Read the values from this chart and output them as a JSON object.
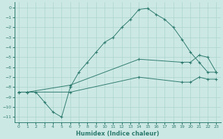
{
  "xlabel": "Humidex (Indice chaleur)",
  "ylabel": "",
  "background_color": "#cce8e4",
  "grid_color": "#aad4cc",
  "line_color": "#2d7a6e",
  "xlim": [
    -0.5,
    23.5
  ],
  "ylim": [
    -11.5,
    0.5
  ],
  "xticks": [
    0,
    1,
    2,
    3,
    4,
    5,
    6,
    7,
    8,
    9,
    10,
    11,
    12,
    13,
    14,
    15,
    16,
    17,
    18,
    19,
    20,
    21,
    22,
    23
  ],
  "yticks": [
    0,
    -1,
    -2,
    -3,
    -4,
    -5,
    -6,
    -7,
    -8,
    -9,
    -10,
    -11
  ],
  "curve1_x": [
    0,
    1,
    2,
    3,
    4,
    5,
    6,
    7,
    8,
    9,
    10,
    11,
    12,
    13,
    14,
    15,
    16,
    17,
    18,
    19,
    20,
    21,
    22,
    23
  ],
  "curve1_y": [
    -8.5,
    -8.5,
    -8.5,
    -9.5,
    -10.5,
    -11.0,
    -8.0,
    -6.5,
    -5.5,
    -4.5,
    -3.5,
    -3.0,
    -2.0,
    -1.2,
    -0.2,
    -0.1,
    -0.7,
    -1.2,
    -2.0,
    -3.2,
    -4.5,
    -5.5,
    -6.5,
    -6.5
  ],
  "curve2_x": [
    0,
    1,
    6,
    14,
    19,
    20,
    21,
    22,
    23
  ],
  "curve2_y": [
    -8.5,
    -8.5,
    -7.8,
    -5.2,
    -5.5,
    -5.5,
    -4.8,
    -5.0,
    -6.5
  ],
  "curve3_x": [
    0,
    1,
    6,
    14,
    19,
    20,
    21,
    22,
    23
  ],
  "curve3_y": [
    -8.5,
    -8.5,
    -8.5,
    -7.0,
    -7.5,
    -7.5,
    -7.0,
    -7.2,
    -7.2
  ]
}
